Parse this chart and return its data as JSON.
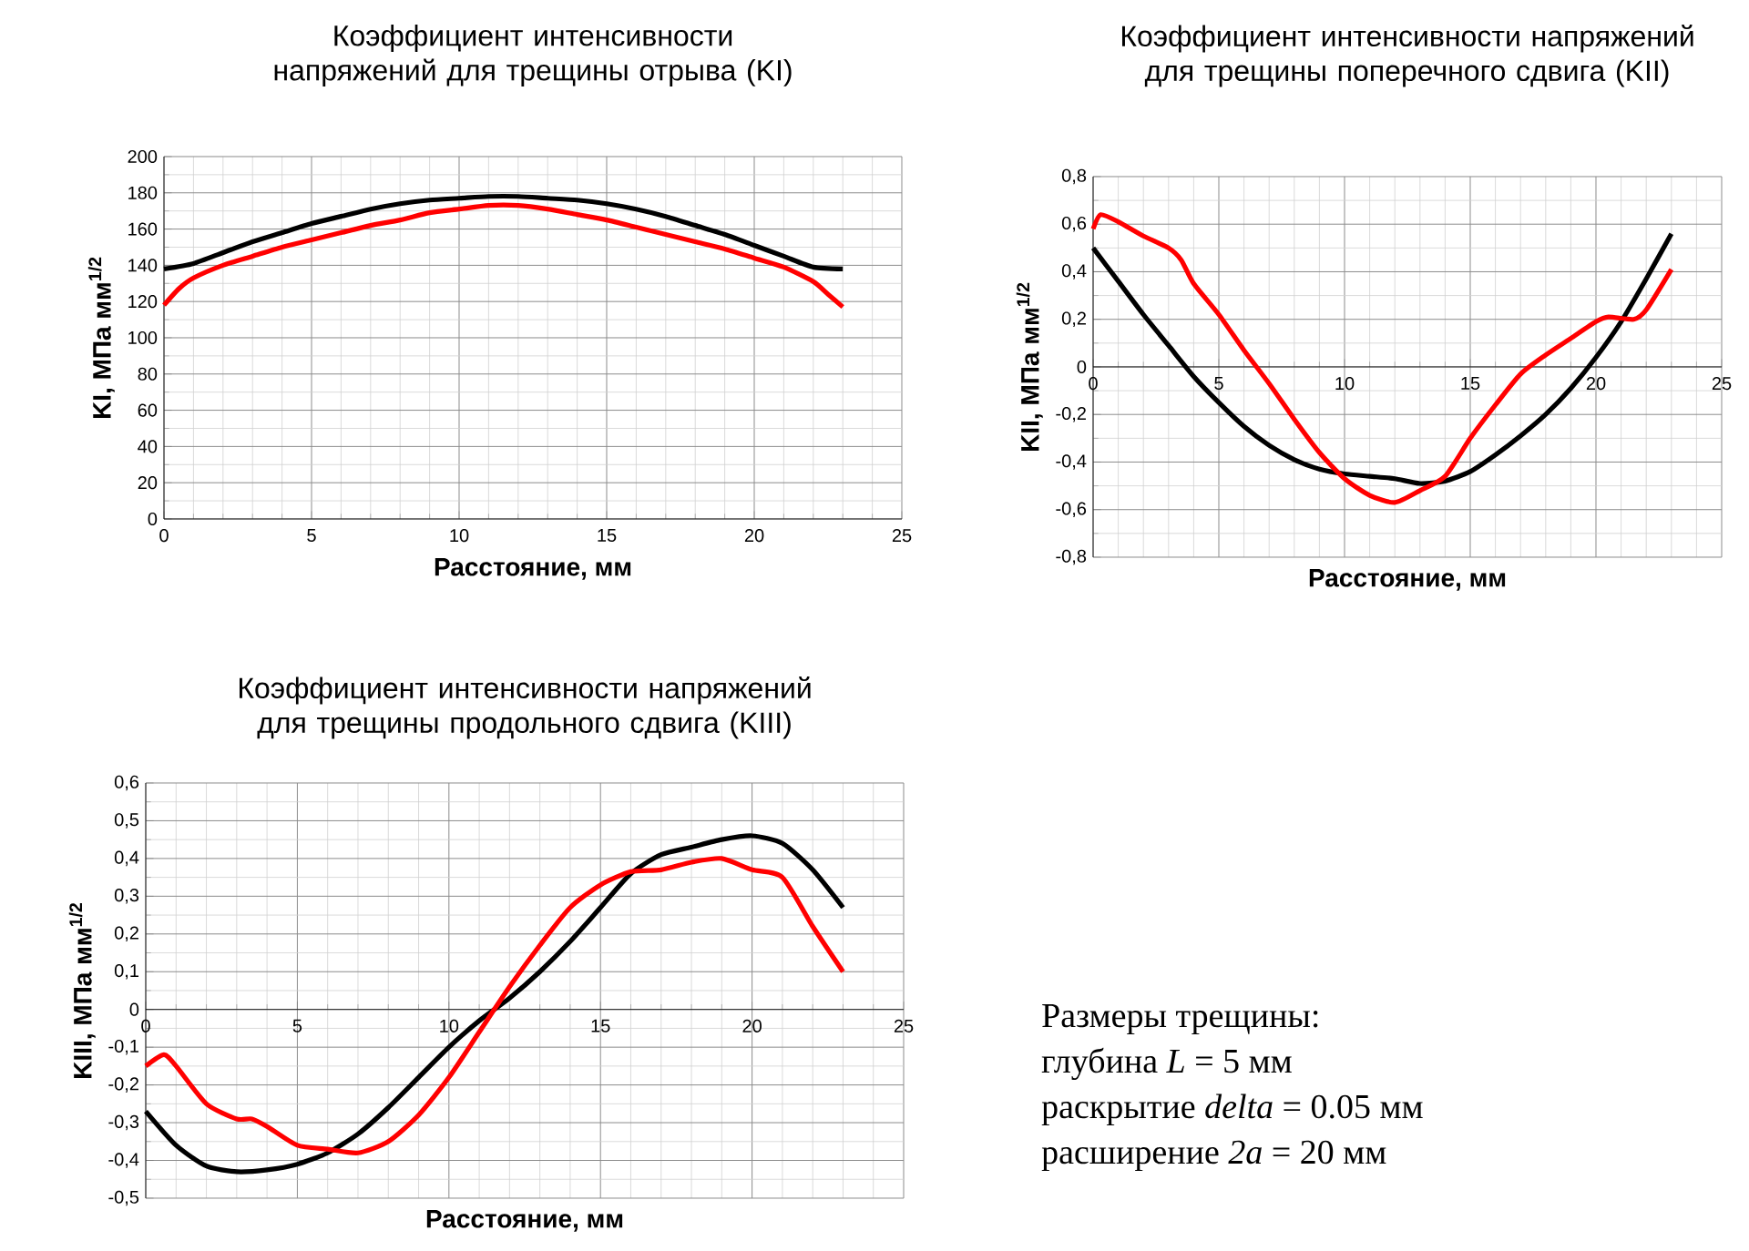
{
  "chart_data": [
    {
      "type": "line",
      "title": "Коэффициент интенсивности напряжений  для трещины отрыва  (KI)",
      "xlabel": "Расстояние, мм",
      "ylabel": "KI, МПа мм$^{1/2}$",
      "xlim": [
        0,
        25
      ],
      "xticks": [
        0,
        5,
        10,
        15,
        20,
        25
      ],
      "ylim": [
        0,
        200
      ],
      "yticks": [
        0,
        20,
        40,
        60,
        80,
        100,
        120,
        140,
        160,
        180,
        200
      ],
      "grid": true,
      "series": [
        {
          "color": "#000000",
          "x": [
            0,
            1,
            2,
            3,
            4,
            5,
            6,
            7,
            8,
            9,
            10,
            11,
            12,
            13,
            14,
            15,
            16,
            17,
            18,
            19,
            20,
            21,
            22,
            23
          ],
          "values": [
            138,
            141,
            147,
            153,
            158,
            163,
            167,
            171,
            174,
            176,
            177,
            178,
            178,
            177,
            176,
            174,
            171,
            167,
            162,
            157,
            151,
            145,
            139,
            138
          ]
        },
        {
          "color": "#ff0000",
          "x": [
            0,
            0.5,
            1,
            2,
            3,
            4,
            5,
            6,
            7,
            8,
            9,
            10,
            11,
            12,
            13,
            14,
            15,
            16,
            17,
            18,
            19,
            20,
            21,
            22,
            22.5,
            23
          ],
          "values": [
            118,
            127,
            133,
            140,
            145,
            150,
            154,
            158,
            162,
            165,
            169,
            171,
            173,
            173,
            171,
            168,
            165,
            161,
            157,
            153,
            149,
            144,
            139,
            131,
            124,
            117
          ]
        }
      ]
    },
    {
      "type": "line",
      "title": "Коэффициент интенсивности напряжений  для трещины поперечного сдвига   (KII)",
      "xlabel": "Расстояние, мм",
      "ylabel": "KII, МПа мм$^{1/2}$",
      "xlim": [
        0,
        25
      ],
      "xticks": [
        0,
        5,
        10,
        15,
        20,
        25
      ],
      "ylim": [
        -0.8,
        0.8
      ],
      "yticks": [
        {
          "value": -0.8,
          "label": "-0,8"
        },
        {
          "value": -0.6,
          "label": "-0,6"
        },
        {
          "value": -0.4,
          "label": "-0,4"
        },
        {
          "value": -0.2,
          "label": "-0,2"
        },
        0,
        {
          "value": 0.2,
          "label": "0,2"
        },
        {
          "value": 0.4,
          "label": "0,4"
        },
        {
          "value": 0.6,
          "label": "0,6"
        },
        {
          "value": 0.8,
          "label": "0,8"
        }
      ],
      "grid": true,
      "series": [
        {
          "color": "#000000",
          "x": [
            0,
            1,
            2,
            3,
            4,
            5,
            6,
            7,
            8,
            9,
            10,
            11,
            12,
            13,
            14,
            15,
            16,
            17,
            18,
            19,
            20,
            21,
            22,
            23
          ],
          "values": [
            0.5,
            0.36,
            0.22,
            0.09,
            -0.04,
            -0.15,
            -0.25,
            -0.33,
            -0.39,
            -0.43,
            -0.45,
            -0.46,
            -0.47,
            -0.49,
            -0.48,
            -0.44,
            -0.37,
            -0.29,
            -0.2,
            -0.09,
            0.04,
            0.19,
            0.37,
            0.56
          ]
        },
        {
          "color": "#ff0000",
          "x": [
            0,
            0.3,
            1,
            2,
            3,
            3.5,
            4,
            5,
            6,
            7,
            8,
            9,
            10,
            11,
            12,
            13,
            14,
            15,
            16,
            17,
            18,
            19,
            20,
            20.5,
            21.5,
            22,
            23
          ],
          "values": [
            0.58,
            0.64,
            0.61,
            0.55,
            0.5,
            0.45,
            0.35,
            0.22,
            0.07,
            -0.07,
            -0.22,
            -0.36,
            -0.47,
            -0.54,
            -0.57,
            -0.52,
            -0.46,
            -0.3,
            -0.16,
            -0.03,
            0.05,
            0.12,
            0.19,
            0.21,
            0.2,
            0.24,
            0.41
          ]
        }
      ]
    },
    {
      "type": "line",
      "title": "Коэффициент интенсивности напряжений для трещины продольного сдвига   (KIII)",
      "xlabel": "Расстояние, мм",
      "ylabel": "KIII, МПа мм$^{1/2}$",
      "xlim": [
        0,
        25
      ],
      "xticks": [
        0,
        5,
        10,
        15,
        20,
        25
      ],
      "ylim": [
        -0.5,
        0.6
      ],
      "yticks": [
        {
          "value": -0.5,
          "label": "-0,5"
        },
        {
          "value": -0.4,
          "label": "-0,4"
        },
        {
          "value": -0.3,
          "label": "-0,3"
        },
        {
          "value": -0.2,
          "label": "-0,2"
        },
        {
          "value": -0.1,
          "label": "-0,1"
        },
        0,
        {
          "value": 0.1,
          "label": "0,1"
        },
        {
          "value": 0.2,
          "label": "0,2"
        },
        {
          "value": 0.3,
          "label": "0,3"
        },
        {
          "value": 0.4,
          "label": "0,4"
        },
        {
          "value": 0.5,
          "label": "0,5"
        },
        {
          "value": 0.6,
          "label": "0,6"
        }
      ],
      "grid": true,
      "series": [
        {
          "color": "#000000",
          "x": [
            0,
            1,
            2,
            3,
            4,
            5,
            6,
            7,
            8,
            9,
            10,
            11,
            12,
            13,
            14,
            15,
            16,
            17,
            18,
            19,
            20,
            21,
            22,
            23
          ],
          "values": [
            -0.27,
            -0.36,
            -0.415,
            -0.43,
            -0.425,
            -0.41,
            -0.38,
            -0.33,
            -0.26,
            -0.18,
            -0.1,
            -0.03,
            0.03,
            0.1,
            0.18,
            0.27,
            0.36,
            0.41,
            0.43,
            0.45,
            0.46,
            0.44,
            0.37,
            0.27
          ]
        },
        {
          "color": "#ff0000",
          "x": [
            0,
            0.6,
            1,
            2,
            3,
            3.5,
            4,
            5,
            6,
            7,
            8,
            9,
            10,
            11,
            12,
            13,
            14,
            15,
            16,
            17,
            18,
            19,
            20,
            21,
            22,
            23
          ],
          "values": [
            -0.15,
            -0.12,
            -0.15,
            -0.25,
            -0.29,
            -0.29,
            -0.31,
            -0.36,
            -0.37,
            -0.38,
            -0.35,
            -0.28,
            -0.18,
            -0.06,
            0.06,
            0.17,
            0.27,
            0.33,
            0.365,
            0.37,
            0.39,
            0.4,
            0.37,
            0.35,
            0.22,
            0.1
          ]
        }
      ]
    },
    {
      "type": "other",
      "title": "Размеры трещины:",
      "annotations": [
        "глубина *L* = 5 мм",
        "раскрытие *delta* = 0.05 мм",
        "расширение *2a* = 20 мм"
      ]
    }
  ]
}
